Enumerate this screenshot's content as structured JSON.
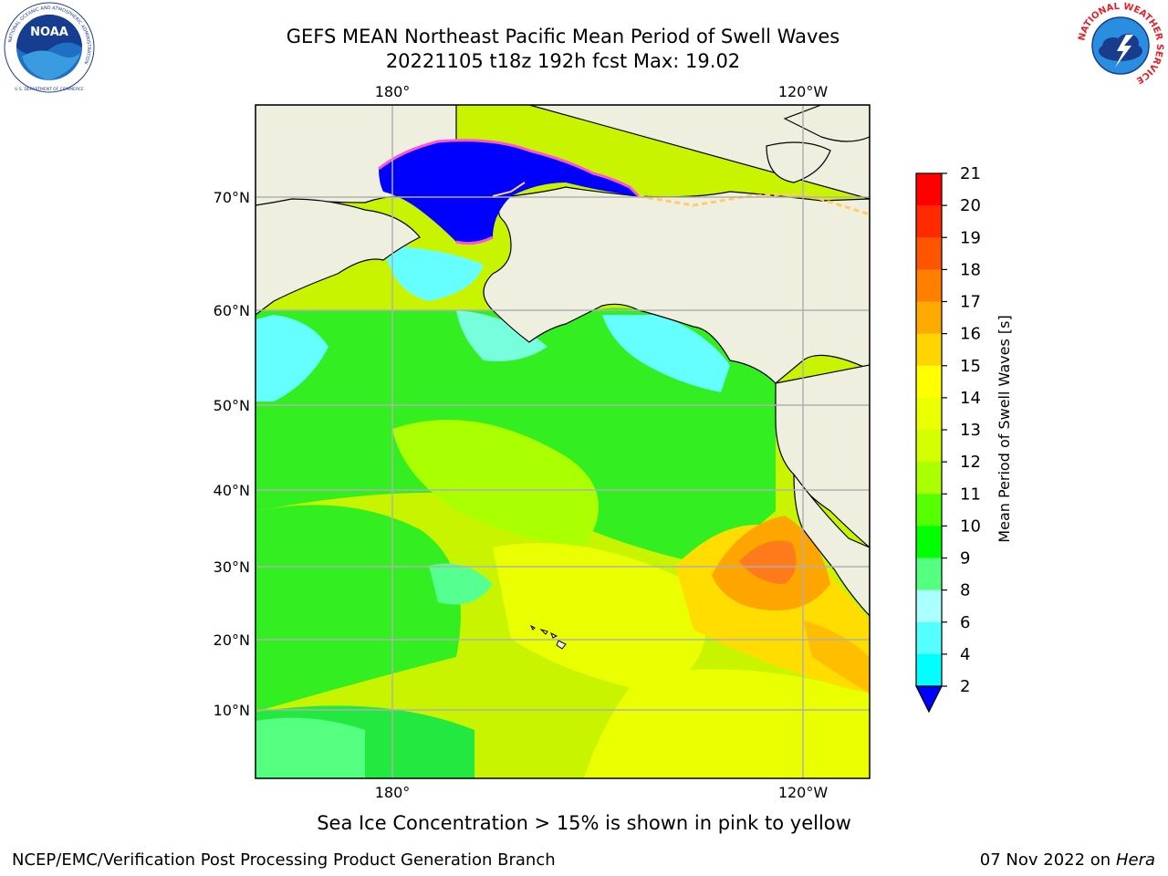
{
  "header": {
    "title_line1": "GEFS MEAN Northeast Pacific Mean Period of Swell Waves",
    "title_line2": "20221105 t18z 192h fcst   Max: 19.02"
  },
  "logos": {
    "left": "noaa-logo",
    "right": "nws-logo",
    "left_ring_text": "NATIONAL OCEANIC AND ATMOSPHERIC ADMINISTRATION",
    "left_bottom_text": "U.S. DEPARTMENT OF COMMERCE",
    "left_center_text": "NOAA",
    "right_ring_text": "NATIONAL WEATHER SERVICE"
  },
  "map": {
    "lon_labels_top": [
      "180°",
      "120°W"
    ],
    "lon_labels_bottom": [
      "180°",
      "120°W"
    ],
    "lat_labels": [
      "70°N",
      "60°N",
      "50°N",
      "40°N",
      "30°N",
      "20°N",
      "10°N"
    ],
    "land_color": "#efefe0",
    "ice_color": "#0000ff"
  },
  "colorbar": {
    "label": "Mean Period of Swell Waves [s]",
    "ticks": [
      "21",
      "20",
      "19",
      "18",
      "17",
      "16",
      "15",
      "14",
      "13",
      "12",
      "11",
      "10",
      "9",
      "8",
      "6",
      "4",
      "2"
    ],
    "colors": [
      "#ff0000",
      "#ff2a00",
      "#ff5500",
      "#ff8000",
      "#ffaa00",
      "#ffd400",
      "#ffff00",
      "#eaff00",
      "#d4ff00",
      "#aaff00",
      "#55ff00",
      "#00ff00",
      "#55ff80",
      "#aaffff",
      "#55ffff",
      "#00ffff",
      "#00aaff",
      "#0055ff"
    ],
    "extend_color": "#0000ff"
  },
  "ice_note": "Sea Ice Concentration > 15% is shown in pink to yellow",
  "footer": {
    "left": "NCEP/EMC/Verification Post Processing Product Generation Branch",
    "right_date": "07 Nov 2022 on",
    "right_machine": "Hera"
  }
}
